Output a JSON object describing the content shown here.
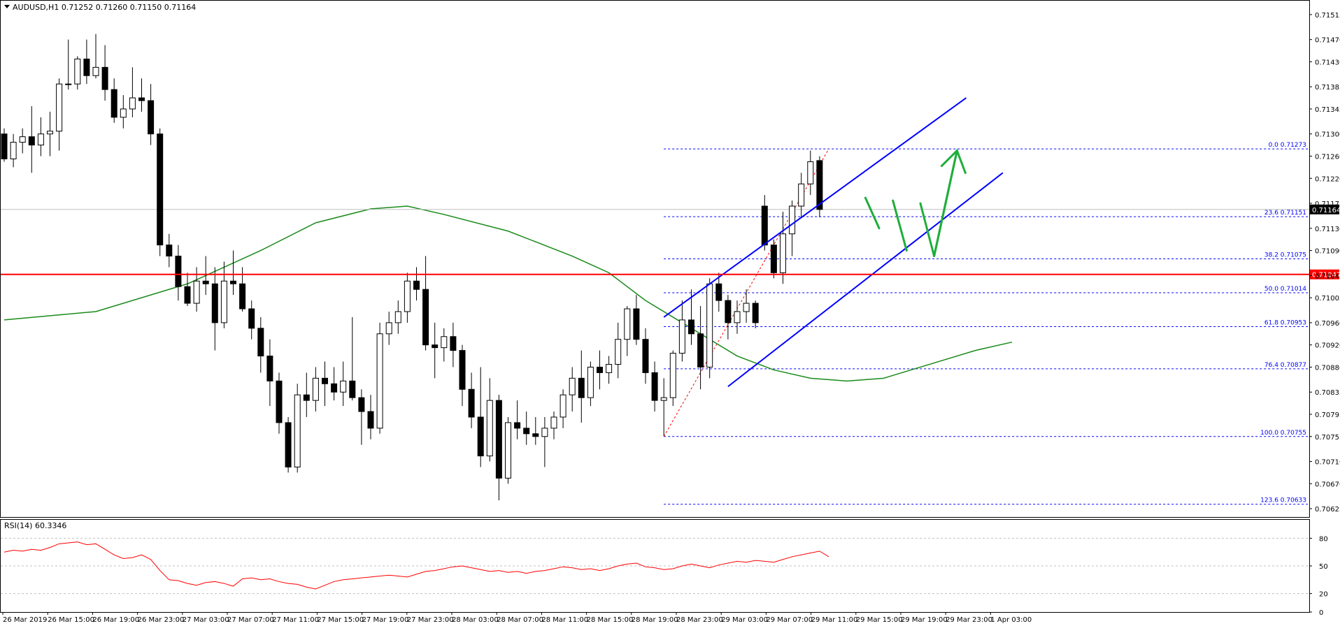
{
  "header": {
    "symbol_line": "AUDUSD,H1  0.71252 0.71260 0.71150 0.71164",
    "rsi_label": "RSI(14) 60.3346"
  },
  "colors": {
    "bg": "#ffffff",
    "candle": "#000000",
    "ma": "#1a8a1a",
    "support": "#ff0000",
    "channel": "#0000ff",
    "fib": "#0000ff",
    "projection": "#1fae3a",
    "rsi": "#ff0000",
    "label_bg": "#000000",
    "support_label_bg": "#ff0000"
  },
  "chart_data": [
    {
      "type": "candlestick",
      "symbol": "AUDUSD",
      "timeframe": "H1",
      "ylim": [
        0.7061,
        0.7154
      ],
      "yticks": [
        "0.71515",
        "0.71470",
        "0.71430",
        "0.71385",
        "0.71345",
        "0.71300",
        "0.71260",
        "0.71220",
        "0.71175",
        "0.71130",
        "0.71090",
        "0.71045",
        "0.71005",
        "0.70960",
        "0.70920",
        "0.70880",
        "0.70835",
        "0.70795",
        "0.70755",
        "0.70710",
        "0.70670",
        "0.70625"
      ],
      "xticks": [
        "26 Mar 2019",
        "26 Mar 15:00",
        "26 Mar 19:00",
        "26 Mar 23:00",
        "27 Mar 03:00",
        "27 Mar 07:00",
        "27 Mar 11:00",
        "27 Mar 15:00",
        "27 Mar 19:00",
        "27 Mar 23:00",
        "28 Mar 03:00",
        "28 Mar 07:00",
        "28 Mar 11:00",
        "28 Mar 15:00",
        "28 Mar 19:00",
        "28 Mar 23:00",
        "29 Mar 03:00",
        "29 Mar 07:00",
        "29 Mar 11:00",
        "29 Mar 15:00",
        "29 Mar 19:00",
        "29 Mar 23:00",
        "1 Apr 03:00"
      ],
      "current_price": {
        "value": 0.71164,
        "label": "0.71164"
      },
      "support_line": {
        "value": 0.71047,
        "label": "0.71047"
      },
      "candles": [
        [
          0.713,
          0.7131,
          0.7125,
          0.71255
        ],
        [
          0.71255,
          0.713,
          0.7124,
          0.71285
        ],
        [
          0.71285,
          0.7131,
          0.71265,
          0.71295
        ],
        [
          0.71295,
          0.7135,
          0.7123,
          0.7128
        ],
        [
          0.7128,
          0.7133,
          0.7126,
          0.713
        ],
        [
          0.713,
          0.7134,
          0.7126,
          0.71305
        ],
        [
          0.71305,
          0.714,
          0.7127,
          0.7139
        ],
        [
          0.7139,
          0.7147,
          0.7138,
          0.7139
        ],
        [
          0.7139,
          0.7144,
          0.7138,
          0.71435
        ],
        [
          0.71435,
          0.7147,
          0.7139,
          0.71405
        ],
        [
          0.71405,
          0.7148,
          0.714,
          0.7142
        ],
        [
          0.7142,
          0.7146,
          0.7136,
          0.7138
        ],
        [
          0.7138,
          0.714,
          0.7132,
          0.7133
        ],
        [
          0.7133,
          0.7137,
          0.7131,
          0.71345
        ],
        [
          0.71345,
          0.7142,
          0.7133,
          0.71365
        ],
        [
          0.71365,
          0.714,
          0.7134,
          0.7136
        ],
        [
          0.7136,
          0.7139,
          0.7128,
          0.713
        ],
        [
          0.713,
          0.7131,
          0.7108,
          0.711
        ],
        [
          0.711,
          0.7112,
          0.7106,
          0.7108
        ],
        [
          0.7108,
          0.711,
          0.71,
          0.71025
        ],
        [
          0.71025,
          0.7105,
          0.7099,
          0.70995
        ],
        [
          0.70995,
          0.7106,
          0.7098,
          0.71035
        ],
        [
          0.71035,
          0.7108,
          0.7101,
          0.7103
        ],
        [
          0.7103,
          0.7106,
          0.7091,
          0.7096
        ],
        [
          0.7096,
          0.7107,
          0.7095,
          0.71035
        ],
        [
          0.71035,
          0.7109,
          0.7101,
          0.7103
        ],
        [
          0.7103,
          0.7106,
          0.7098,
          0.70985
        ],
        [
          0.70985,
          0.71,
          0.7093,
          0.7095
        ],
        [
          0.7095,
          0.7097,
          0.7087,
          0.709
        ],
        [
          0.709,
          0.7093,
          0.7081,
          0.70855
        ],
        [
          0.70855,
          0.7087,
          0.7076,
          0.7078
        ],
        [
          0.7078,
          0.7079,
          0.7069,
          0.707
        ],
        [
          0.707,
          0.7085,
          0.7069,
          0.7083
        ],
        [
          0.7083,
          0.7087,
          0.7079,
          0.7082
        ],
        [
          0.7082,
          0.7088,
          0.708,
          0.7086
        ],
        [
          0.7086,
          0.7089,
          0.7081,
          0.7085
        ],
        [
          0.7085,
          0.7088,
          0.7082,
          0.70835
        ],
        [
          0.70835,
          0.7089,
          0.7081,
          0.70855
        ],
        [
          0.70855,
          0.7097,
          0.7082,
          0.70825
        ],
        [
          0.70825,
          0.7084,
          0.7074,
          0.708
        ],
        [
          0.708,
          0.7083,
          0.7075,
          0.7077
        ],
        [
          0.7077,
          0.7096,
          0.7076,
          0.7094
        ],
        [
          0.7094,
          0.7098,
          0.7092,
          0.7096
        ],
        [
          0.7096,
          0.71,
          0.7094,
          0.7098
        ],
        [
          0.7098,
          0.7105,
          0.7096,
          0.71035
        ],
        [
          0.71035,
          0.7106,
          0.71,
          0.7102
        ],
        [
          0.7102,
          0.7108,
          0.7091,
          0.7092
        ],
        [
          0.7092,
          0.7096,
          0.7086,
          0.70915
        ],
        [
          0.70915,
          0.7095,
          0.7089,
          0.70935
        ],
        [
          0.70935,
          0.7096,
          0.7088,
          0.7091
        ],
        [
          0.7091,
          0.7092,
          0.7081,
          0.7084
        ],
        [
          0.7084,
          0.7087,
          0.7077,
          0.7079
        ],
        [
          0.7079,
          0.7088,
          0.707,
          0.7072
        ],
        [
          0.7072,
          0.7086,
          0.7071,
          0.7082
        ],
        [
          0.7082,
          0.7083,
          0.7064,
          0.7068
        ],
        [
          0.7068,
          0.7079,
          0.7067,
          0.7078
        ],
        [
          0.7078,
          0.7082,
          0.7075,
          0.7077
        ],
        [
          0.7077,
          0.708,
          0.7074,
          0.7076
        ],
        [
          0.7076,
          0.7079,
          0.7074,
          0.70755
        ],
        [
          0.70755,
          0.7079,
          0.707,
          0.7077
        ],
        [
          0.7077,
          0.708,
          0.7075,
          0.7079
        ],
        [
          0.7079,
          0.7084,
          0.7077,
          0.7083
        ],
        [
          0.7083,
          0.7088,
          0.708,
          0.7086
        ],
        [
          0.7086,
          0.7091,
          0.7078,
          0.70825
        ],
        [
          0.70825,
          0.7089,
          0.7081,
          0.7088
        ],
        [
          0.7088,
          0.7091,
          0.7084,
          0.7087
        ],
        [
          0.7087,
          0.709,
          0.7085,
          0.70885
        ],
        [
          0.70885,
          0.7096,
          0.7086,
          0.7093
        ],
        [
          0.7093,
          0.7099,
          0.709,
          0.70985
        ],
        [
          0.70985,
          0.7101,
          0.7092,
          0.7093
        ],
        [
          0.7093,
          0.7095,
          0.7085,
          0.7087
        ],
        [
          0.7087,
          0.7089,
          0.708,
          0.7082
        ],
        [
          0.7082,
          0.7086,
          0.70756,
          0.70825
        ],
        [
          0.70825,
          0.7091,
          0.7081,
          0.70905
        ],
        [
          0.70905,
          0.71,
          0.7089,
          0.70965
        ],
        [
          0.70965,
          0.7102,
          0.7092,
          0.7094
        ],
        [
          0.7094,
          0.7099,
          0.7084,
          0.7088
        ],
        [
          0.7088,
          0.7104,
          0.7086,
          0.7103
        ],
        [
          0.7103,
          0.7105,
          0.7098,
          0.71
        ],
        [
          0.71,
          0.7101,
          0.7093,
          0.7096
        ],
        [
          0.7096,
          0.71,
          0.7094,
          0.7098
        ],
        [
          0.7098,
          0.7102,
          0.7096,
          0.70995
        ],
        [
          0.70995,
          0.71,
          0.7095,
          0.7096
        ],
        [
          0.7117,
          0.7119,
          0.7109,
          0.711
        ],
        [
          0.711,
          0.7111,
          0.7104,
          0.7105
        ],
        [
          0.7105,
          0.7116,
          0.7103,
          0.7112
        ],
        [
          0.7112,
          0.7118,
          0.7108,
          0.7117
        ],
        [
          0.7117,
          0.7123,
          0.7115,
          0.7121
        ],
        [
          0.7121,
          0.7127,
          0.7119,
          0.7125
        ],
        [
          0.71252,
          0.7126,
          0.7115,
          0.71164
        ]
      ],
      "moving_average": [
        [
          0,
          0.70965
        ],
        [
          10,
          0.7098
        ],
        [
          20,
          0.7103
        ],
        [
          28,
          0.7109
        ],
        [
          34,
          0.7114
        ],
        [
          40,
          0.71165
        ],
        [
          44,
          0.7117
        ],
        [
          48,
          0.71155
        ],
        [
          55,
          0.71125
        ],
        [
          62,
          0.7108
        ],
        [
          66,
          0.7105
        ],
        [
          70,
          0.71
        ],
        [
          75,
          0.7095
        ],
        [
          80,
          0.709
        ],
        [
          84,
          0.70875
        ],
        [
          88,
          0.7086
        ],
        [
          92,
          0.70855
        ],
        [
          96,
          0.7086
        ],
        [
          100,
          0.7088
        ],
        [
          106,
          0.7091
        ],
        [
          110,
          0.70925
        ]
      ],
      "channel_lines": [
        {
          "from": [
            72,
            0.7097
          ],
          "to": [
            105,
            0.71365
          ]
        },
        {
          "from": [
            79,
            0.70845
          ],
          "to": [
            109,
            0.7123
          ]
        }
      ],
      "fib_swing": {
        "from": [
          72,
          0.70755
        ],
        "to": [
          90,
          0.71273
        ]
      },
      "fib_levels": [
        {
          "label": "0.0 0.71273",
          "value": 0.71273
        },
        {
          "label": "23.6 0.71151",
          "value": 0.71151
        },
        {
          "label": "38.2 0.71075",
          "value": 0.71075
        },
        {
          "label": "50.0 0.71014",
          "value": 0.71014
        },
        {
          "label": "61.8 0.70953",
          "value": 0.70953
        },
        {
          "label": "76.4 0.70877",
          "value": 0.70877
        },
        {
          "label": "100.0 0.70755",
          "value": 0.70755
        },
        {
          "label": "123.6 0.70633",
          "value": 0.70633
        }
      ],
      "projection_path": [
        [
          94,
          0.71185
        ],
        [
          95.5,
          0.7113
        ],
        [
          97,
          0.7118
        ],
        [
          98.5,
          0.7109
        ],
        [
          100,
          0.71175
        ],
        [
          101.5,
          0.7108
        ],
        [
          104,
          0.7127
        ],
        [
          105,
          0.712
        ]
      ]
    },
    {
      "type": "line",
      "name": "RSI(14)",
      "value": 60.3346,
      "ylim": [
        0,
        100
      ],
      "yticks": [
        "80",
        "50",
        "20",
        "0"
      ],
      "levels": [
        80,
        50,
        20
      ],
      "values": [
        65,
        67,
        66,
        68,
        67,
        70,
        74,
        75,
        76,
        73,
        74,
        68,
        62,
        58,
        59,
        62,
        57,
        45,
        35,
        34,
        31,
        29,
        32,
        33,
        31,
        28,
        36,
        37,
        35,
        36,
        33,
        31,
        30,
        27,
        25,
        29,
        33,
        35,
        36,
        37,
        38,
        39,
        40,
        39,
        38,
        41,
        44,
        45,
        47,
        49,
        50,
        48,
        46,
        44,
        45,
        43,
        44,
        42,
        44,
        45,
        47,
        49,
        48,
        46,
        47,
        45,
        47,
        50,
        52,
        53,
        49,
        48,
        46,
        47,
        50,
        52,
        50,
        48,
        51,
        53,
        55,
        54,
        56,
        55,
        54,
        57,
        60,
        62,
        64,
        66,
        60
      ]
    }
  ]
}
